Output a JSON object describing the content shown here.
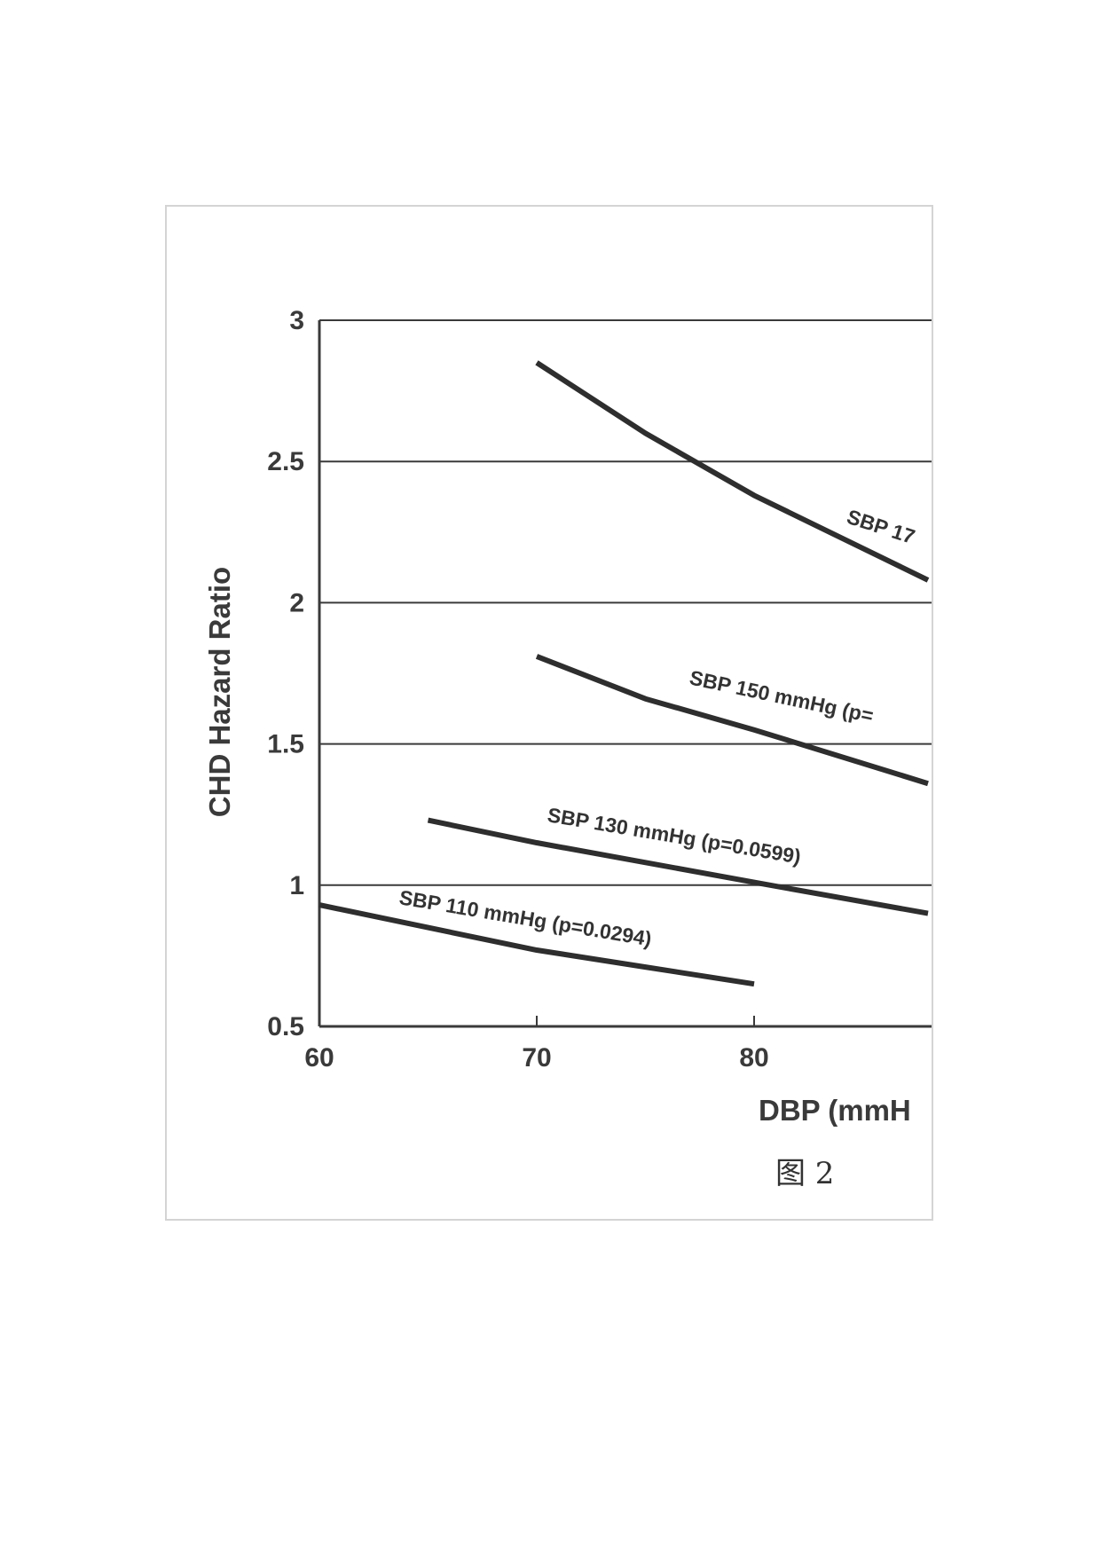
{
  "chart_data": {
    "type": "line",
    "xlabel": "DBP (mmH",
    "ylabel": "CHD Hazard Ratio",
    "xlim": [
      60,
      88
    ],
    "ylim": [
      0.5,
      3
    ],
    "x_ticks": [
      "60",
      "70",
      "80"
    ],
    "y_ticks": [
      "0.5",
      "1",
      "1.5",
      "2",
      "2.5",
      "3"
    ],
    "grid": "horizontal",
    "series": [
      {
        "name": "SBP 17",
        "x": [
          70,
          75,
          80,
          88
        ],
        "y": [
          2.85,
          2.6,
          2.38,
          2.08
        ]
      },
      {
        "name": "SBP 150 mmHg (p=",
        "x": [
          70,
          75,
          80,
          88
        ],
        "y": [
          1.81,
          1.66,
          1.55,
          1.36
        ]
      },
      {
        "name": "SBP 130 mmHg (p=0.0599)",
        "x": [
          65,
          70,
          80,
          88
        ],
        "y": [
          1.23,
          1.15,
          1.01,
          0.9
        ]
      },
      {
        "name": "SBP 110 mmHg (p=0.0294)",
        "x": [
          60,
          65,
          70,
          75,
          80
        ],
        "y": [
          0.93,
          0.85,
          0.77,
          0.71,
          0.65
        ]
      }
    ]
  },
  "caption": "图 2",
  "colors": {
    "line": "#2e2e2e",
    "grid": "#3a3a3a",
    "frame_border": "#d4d4d4"
  }
}
